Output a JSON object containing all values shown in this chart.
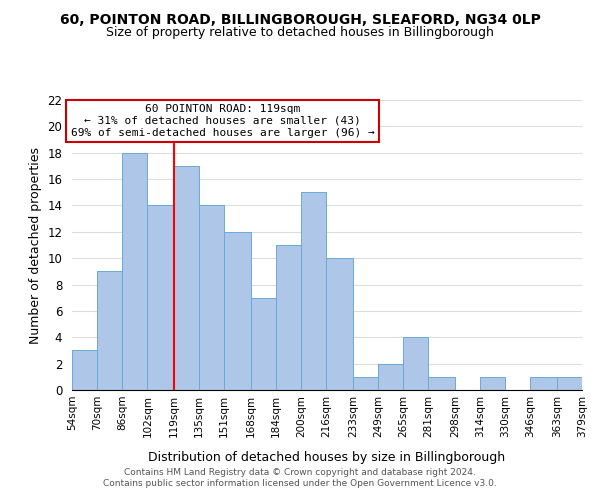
{
  "title": "60, POINTON ROAD, BILLINGBOROUGH, SLEAFORD, NG34 0LP",
  "subtitle": "Size of property relative to detached houses in Billingborough",
  "xlabel": "Distribution of detached houses by size in Billingborough",
  "ylabel": "Number of detached properties",
  "bin_edges": [
    54,
    70,
    86,
    102,
    119,
    135,
    151,
    168,
    184,
    200,
    216,
    233,
    249,
    265,
    281,
    298,
    314,
    330,
    346,
    363,
    379
  ],
  "bin_labels": [
    "54sqm",
    "70sqm",
    "86sqm",
    "102sqm",
    "119sqm",
    "135sqm",
    "151sqm",
    "168sqm",
    "184sqm",
    "200sqm",
    "216sqm",
    "233sqm",
    "249sqm",
    "265sqm",
    "281sqm",
    "298sqm",
    "314sqm",
    "330sqm",
    "346sqm",
    "363sqm",
    "379sqm"
  ],
  "counts": [
    3,
    9,
    18,
    14,
    17,
    14,
    12,
    7,
    11,
    15,
    10,
    1,
    2,
    4,
    1,
    0,
    1,
    0,
    1,
    1
  ],
  "bar_color": "#aec6e8",
  "bar_edge_color": "#6aaad4",
  "red_line_x": 119,
  "ylim": [
    0,
    22
  ],
  "yticks": [
    0,
    2,
    4,
    6,
    8,
    10,
    12,
    14,
    16,
    18,
    20,
    22
  ],
  "annotation_line1": "60 POINTON ROAD: 119sqm",
  "annotation_line2": "← 31% of detached houses are smaller (43)",
  "annotation_line3": "69% of semi-detached houses are larger (96) →",
  "annotation_box_color": "#ffffff",
  "annotation_box_edge_color": "#cc0000",
  "footer_line1": "Contains HM Land Registry data © Crown copyright and database right 2024.",
  "footer_line2": "Contains public sector information licensed under the Open Government Licence v3.0.",
  "background_color": "#ffffff",
  "grid_color": "#dddddd"
}
